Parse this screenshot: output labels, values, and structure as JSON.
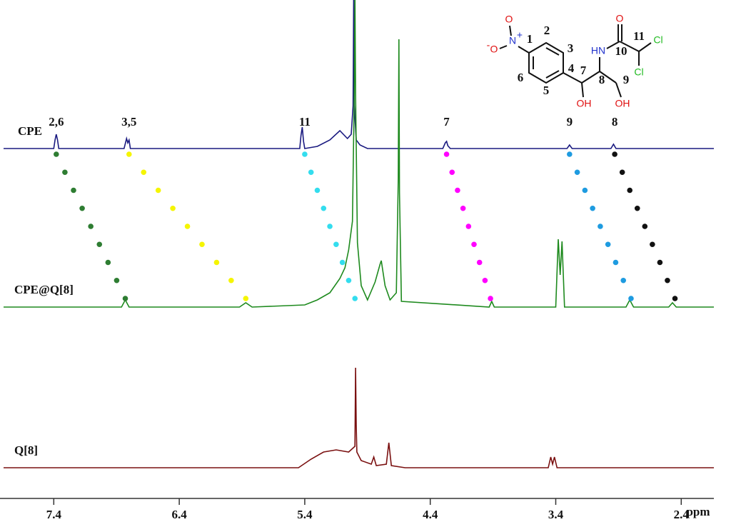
{
  "chart_data": {
    "type": "spectrum",
    "x_label": "ppm",
    "xlim": [
      7.8,
      2.14
    ],
    "xticks": [
      7.4,
      6.4,
      5.4,
      4.4,
      3.4,
      2.4
    ],
    "series": [
      {
        "name": "CPE",
        "color": "#1a1a80",
        "x": [
          7.8,
          7.4,
          7.39,
          7.38,
          7.37,
          7.36,
          6.84,
          6.82,
          6.81,
          6.8,
          6.79,
          5.44,
          5.43,
          5.42,
          5.41,
          5.4,
          5.3,
          5.2,
          5.12,
          5.06,
          5.03,
          5.015,
          5.01,
          5.005,
          4.99,
          4.96,
          4.9,
          4.3,
          4.28,
          4.27,
          4.26,
          4.24,
          3.31,
          3.29,
          3.27,
          2.96,
          2.94,
          2.92,
          2.14
        ],
        "values": [
          0,
          0,
          12,
          20,
          12,
          0,
          0,
          14,
          8,
          12,
          0,
          0,
          18,
          30,
          10,
          0,
          3,
          12,
          25,
          14,
          20,
          60,
          220,
          60,
          12,
          5,
          0,
          0,
          8,
          10,
          4,
          0,
          0,
          5,
          0,
          0,
          6,
          0,
          0
        ]
      },
      {
        "name": "CPE@Q[8]",
        "color": "#1e8a1e",
        "x": [
          7.8,
          6.86,
          6.83,
          6.8,
          5.92,
          5.87,
          5.82,
          5.4,
          5.3,
          5.2,
          5.12,
          5.08,
          5.05,
          5.02,
          5.005,
          5.0,
          4.995,
          4.98,
          4.95,
          4.9,
          4.84,
          4.8,
          4.79,
          4.76,
          4.72,
          4.67,
          4.655,
          4.65,
          4.645,
          4.63,
          3.93,
          3.91,
          3.89,
          3.4,
          3.38,
          3.365,
          3.35,
          3.33,
          2.84,
          2.81,
          2.78,
          2.5,
          2.47,
          2.44,
          2.14
        ],
        "values": [
          0,
          0,
          10,
          0,
          0,
          6,
          0,
          3,
          10,
          20,
          40,
          55,
          80,
          120,
          300,
          440,
          300,
          90,
          30,
          10,
          35,
          60,
          65,
          30,
          10,
          20,
          180,
          375,
          160,
          8,
          0,
          8,
          0,
          0,
          95,
          45,
          92,
          0,
          0,
          10,
          0,
          0,
          6,
          0,
          0
        ]
      },
      {
        "name": "Q[8]",
        "color": "#7a1010",
        "x": [
          7.8,
          5.45,
          5.35,
          5.25,
          5.15,
          5.05,
          5.0,
          4.995,
          4.99,
          4.985,
          4.95,
          4.87,
          4.85,
          4.83,
          4.75,
          4.73,
          4.71,
          4.6,
          3.46,
          3.44,
          3.425,
          3.41,
          3.39,
          2.14
        ],
        "values": [
          0,
          0,
          12,
          22,
          25,
          22,
          30,
          140,
          60,
          22,
          10,
          5,
          15,
          3,
          5,
          35,
          3,
          0,
          0,
          15,
          5,
          15,
          0,
          0
        ]
      }
    ],
    "shifts": [
      {
        "label": "2,6",
        "color": "#2e7d32",
        "from": 7.38,
        "to": 6.83
      },
      {
        "label": "3,5",
        "color": "#f5f500",
        "from": 6.8,
        "to": 5.87
      },
      {
        "label": "11",
        "color": "#33ddee",
        "from": 5.4,
        "to": 5.0
      },
      {
        "label": "7",
        "color": "#ff00ff",
        "from": 4.27,
        "to": 3.92
      },
      {
        "label": "9",
        "color": "#1e9be0",
        "from": 3.29,
        "to": 2.8
      },
      {
        "label": "8",
        "color": "#111111",
        "from": 2.93,
        "to": 2.45
      }
    ],
    "structure_labels": [
      "O",
      "N",
      "+",
      "-",
      "O",
      "1",
      "2",
      "3",
      "4",
      "5",
      "6",
      "7",
      "8",
      "9",
      "10",
      "11",
      "HN",
      "O",
      "Cl",
      "Cl",
      "OH",
      "OH"
    ]
  }
}
